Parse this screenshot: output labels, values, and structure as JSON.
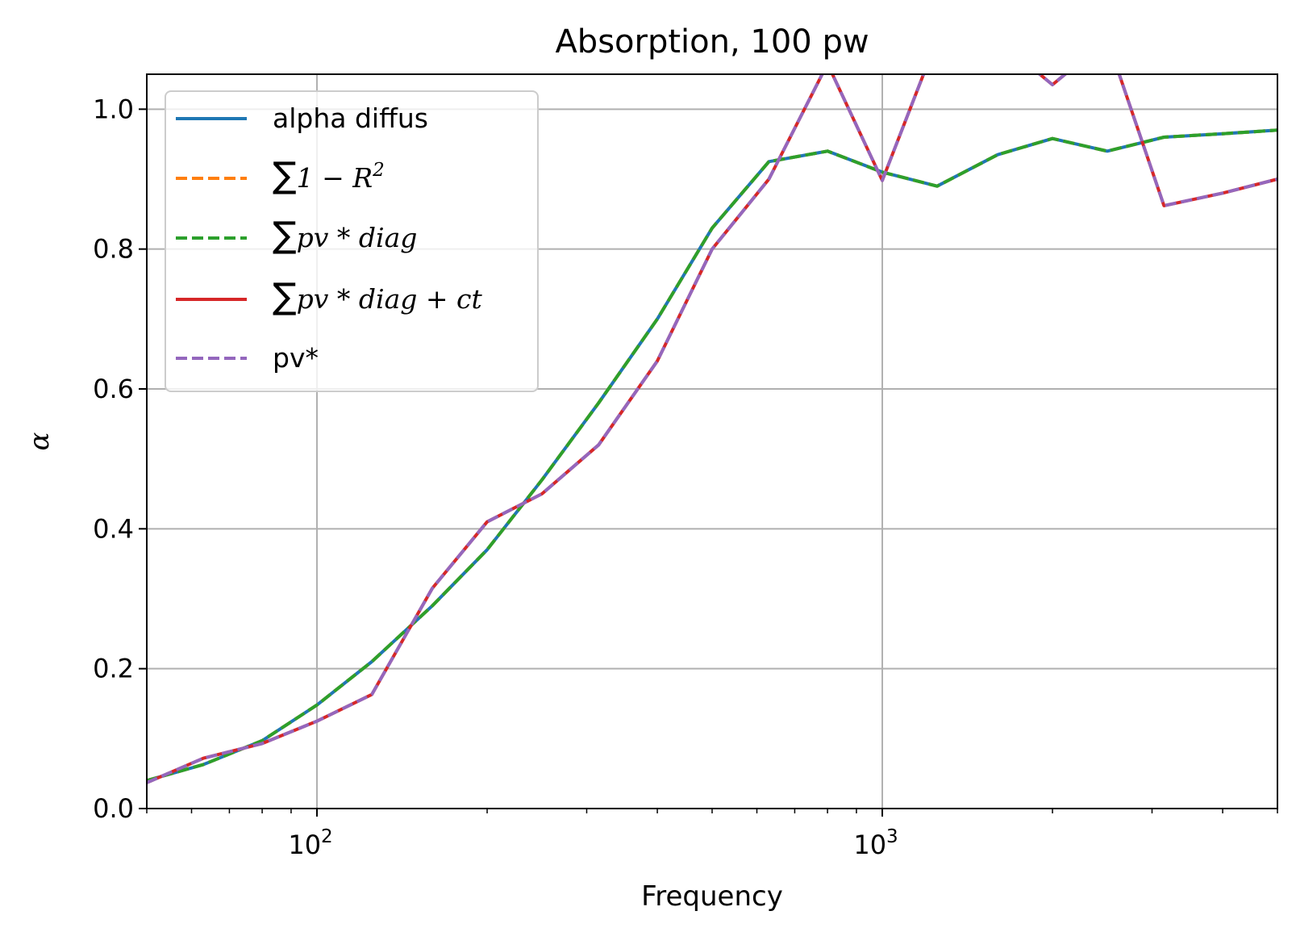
{
  "chart_data": {
    "type": "line",
    "title": "Absorption, 100 pw",
    "xlabel": "Frequency",
    "ylabel": "α",
    "xscale": "log",
    "xlim": [
      50,
      5000
    ],
    "ylim": [
      0,
      1.05
    ],
    "grid": true,
    "legend_position": "upper-left",
    "x_ticks": [
      {
        "value": 100,
        "label": "10",
        "exponent": "2"
      },
      {
        "value": 1000,
        "label": "10",
        "exponent": "3"
      }
    ],
    "y_ticks": [
      {
        "value": 0.0,
        "label": "0.0"
      },
      {
        "value": 0.2,
        "label": "0.2"
      },
      {
        "value": 0.4,
        "label": "0.4"
      },
      {
        "value": 0.6,
        "label": "0.6"
      },
      {
        "value": 0.8,
        "label": "0.8"
      },
      {
        "value": 1.0,
        "label": "1.0"
      }
    ],
    "x": [
      50,
      63,
      80,
      100,
      125,
      160,
      200,
      250,
      315,
      400,
      500,
      630,
      800,
      1000,
      1250,
      1600,
      2000,
      2500,
      3150,
      4000,
      5000
    ],
    "series": [
      {
        "name": "alpha diffus",
        "legend_parts": [
          {
            "text": "alpha diffus",
            "math": false
          }
        ],
        "color": "#1f77b4",
        "dash": "solid",
        "values": [
          0.04,
          0.063,
          0.097,
          0.148,
          0.21,
          0.29,
          0.37,
          0.47,
          0.58,
          0.7,
          0.83,
          0.925,
          0.94,
          0.91,
          0.89,
          0.935,
          0.958,
          0.94,
          0.96,
          0.965,
          0.97
        ]
      },
      {
        "name": "∑1 − R²",
        "legend_parts": [
          {
            "text": "∑",
            "math": false
          },
          {
            "text": "1 − R",
            "math": true
          },
          {
            "text": "2",
            "math": true,
            "sup": true
          }
        ],
        "color": "#ff7f0e",
        "dash": "dashed",
        "values": [
          0.04,
          0.063,
          0.097,
          0.148,
          0.21,
          0.29,
          0.37,
          0.47,
          0.58,
          0.7,
          0.83,
          0.925,
          0.94,
          0.91,
          0.89,
          0.935,
          0.958,
          0.94,
          0.96,
          0.965,
          0.97
        ]
      },
      {
        "name": "∑pv * diag",
        "legend_parts": [
          {
            "text": "∑",
            "math": false
          },
          {
            "text": "pv * diag",
            "math": true
          }
        ],
        "color": "#2ca02c",
        "dash": "dashed",
        "values": [
          0.04,
          0.063,
          0.097,
          0.148,
          0.21,
          0.29,
          0.37,
          0.47,
          0.58,
          0.7,
          0.83,
          0.925,
          0.94,
          0.91,
          0.89,
          0.935,
          0.958,
          0.94,
          0.96,
          0.965,
          0.97
        ]
      },
      {
        "name": "∑pv * diag + ct",
        "legend_parts": [
          {
            "text": "∑",
            "math": false
          },
          {
            "text": "pv * diag + ct",
            "math": true
          }
        ],
        "color": "#d62728",
        "dash": "solid",
        "values": [
          0.037,
          0.072,
          0.093,
          0.125,
          0.163,
          0.315,
          0.41,
          0.45,
          0.52,
          0.64,
          0.8,
          0.9,
          1.065,
          0.898,
          1.1,
          1.1,
          1.035,
          1.1,
          0.862,
          0.88,
          0.9
        ]
      },
      {
        "name": "pv*",
        "legend_parts": [
          {
            "text": "pv*",
            "math": false
          }
        ],
        "color": "#9467bd",
        "dash": "dashed",
        "values": [
          0.037,
          0.072,
          0.093,
          0.125,
          0.163,
          0.315,
          0.41,
          0.45,
          0.52,
          0.64,
          0.8,
          0.9,
          1.065,
          0.898,
          1.1,
          1.1,
          1.035,
          1.1,
          0.862,
          0.88,
          0.9
        ]
      }
    ]
  }
}
